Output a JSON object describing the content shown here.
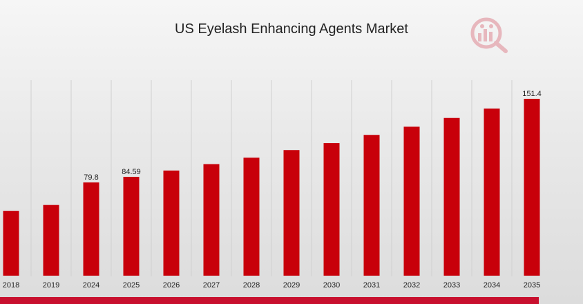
{
  "chart_data": {
    "type": "bar",
    "title": "US Eyelash Enhancing Agents Market",
    "xlabel": "",
    "ylabel": "",
    "categories": [
      "2018",
      "2019",
      "2024",
      "2025",
      "2026",
      "2027",
      "2028",
      "2029",
      "2030",
      "2031",
      "2032",
      "2033",
      "2034",
      "2035"
    ],
    "values": [
      55.5,
      60.5,
      79.8,
      84.59,
      90.0,
      95.5,
      101.0,
      107.5,
      113.5,
      120.5,
      127.5,
      135.0,
      143.0,
      151.4
    ],
    "data_labels": {
      "2024": "79.8",
      "2025": "84.59",
      "2035": "151.4"
    },
    "bar_color": "#c8000a",
    "grid": "vertical",
    "legend": "none"
  },
  "colors": {
    "accent": "#c8102e"
  },
  "logo": {
    "icon": "market-research-logo-icon"
  }
}
